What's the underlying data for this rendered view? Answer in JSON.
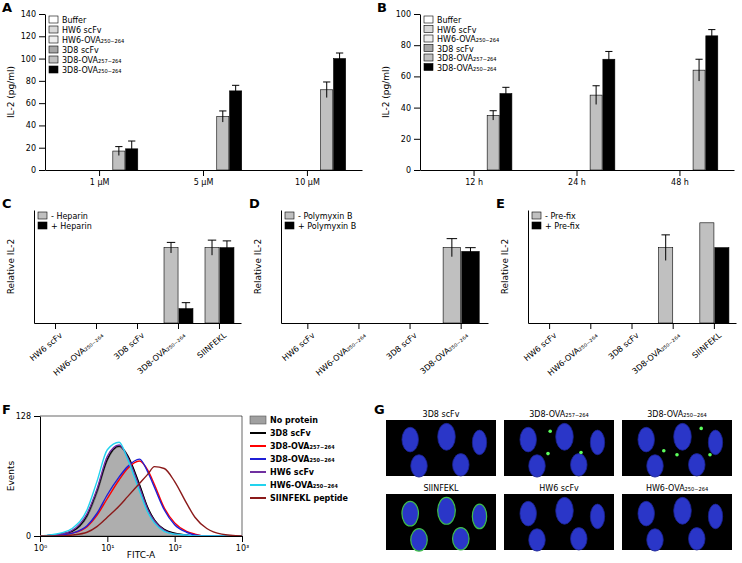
{
  "chart_data": [
    {
      "type": "bar",
      "title": "A",
      "ylabel": "IL-2 (pg/ml)",
      "categories": [
        "1 μM",
        "5 μM",
        "10 μM"
      ],
      "series": [
        {
          "name": "Buffer",
          "color": "#ffffff",
          "values": [
            0,
            0,
            0
          ],
          "errors": [
            null,
            null,
            null
          ]
        },
        {
          "name": "HW6 scFv",
          "color": "#d9d9d9",
          "values": [
            0,
            0,
            0
          ],
          "errors": [
            null,
            null,
            null
          ]
        },
        {
          "name": "HW6-OVA₂₅₀₋₂₆₄",
          "color": "#eeeeee",
          "values": [
            0,
            0,
            0
          ],
          "errors": [
            null,
            null,
            null
          ]
        },
        {
          "name": "3D8 scFv",
          "color": "#a6a6a6",
          "values": [
            0,
            0,
            0
          ],
          "errors": [
            null,
            null,
            null
          ]
        },
        {
          "name": "3D8-OVA₂₅₇₋₂₆₄",
          "color": "#c0c0c0",
          "values": [
            17,
            48,
            72
          ],
          "errors": [
            4,
            5,
            7
          ]
        },
        {
          "name": "3D8-OVA₂₅₀₋₂₆₄",
          "color": "#000000",
          "values": [
            19,
            71,
            100
          ],
          "errors": [
            7,
            5,
            5
          ]
        }
      ],
      "ylim": [
        0,
        140
      ],
      "yticks": [
        0,
        20,
        40,
        60,
        80,
        100,
        120,
        140
      ],
      "legend": "upper left"
    },
    {
      "type": "bar",
      "title": "B",
      "ylabel": "IL-2 (pg/ml)",
      "categories": [
        "12 h",
        "24 h",
        "48 h"
      ],
      "series": [
        {
          "name": "Buffer",
          "color": "#ffffff",
          "values": [
            0,
            0,
            0
          ],
          "errors": [
            null,
            null,
            null
          ]
        },
        {
          "name": "HW6 scFv",
          "color": "#d9d9d9",
          "values": [
            0,
            0,
            0
          ],
          "errors": [
            null,
            null,
            null
          ]
        },
        {
          "name": "HW6-OVA₂₅₀₋₂₆₄",
          "color": "#eeeeee",
          "values": [
            0,
            0,
            0
          ],
          "errors": [
            null,
            null,
            null
          ]
        },
        {
          "name": "3D8 scFv",
          "color": "#a6a6a6",
          "values": [
            0,
            0,
            0
          ],
          "errors": [
            null,
            null,
            null
          ]
        },
        {
          "name": "3D8-OVA₂₅₇₋₂₆₄",
          "color": "#c0c0c0",
          "values": [
            35,
            48,
            64
          ],
          "errors": [
            3,
            6,
            7
          ]
        },
        {
          "name": "3D8-OVA₂₅₀₋₂₆₄",
          "color": "#000000",
          "values": [
            49,
            71,
            86
          ],
          "errors": [
            4,
            5,
            4
          ]
        }
      ],
      "ylim": [
        0,
        100
      ],
      "yticks": [
        0,
        20,
        40,
        60,
        80,
        100
      ],
      "legend": "upper left"
    },
    {
      "type": "bar",
      "title": "C",
      "ylabel": "Relative IL-2",
      "categories": [
        "HW6 scFv",
        "HW6-OVA₂₅₀₋₂₆₄",
        "3D8 scFv",
        "3D8-OVA₂₅₀₋₂₆₄",
        "SIINFEKL"
      ],
      "series": [
        {
          "name": "- Heparin",
          "color": "#c0c0c0",
          "values": [
            0,
            0,
            0,
            1.0,
            1.0
          ],
          "errors": [
            null,
            null,
            null,
            0.07,
            0.1
          ]
        },
        {
          "name": "+ Heparin",
          "color": "#000000",
          "values": [
            0,
            0,
            0,
            0.19,
            1.0
          ],
          "errors": [
            null,
            null,
            null,
            0.08,
            0.09
          ]
        }
      ],
      "ylim": [
        0,
        1.5
      ],
      "tick_labels": "x",
      "legend": "upper left"
    },
    {
      "type": "bar",
      "title": "D",
      "ylabel": "Relative IL-2",
      "categories": [
        "HW6 scFv",
        "HW6-OVA₂₅₀₋₂₆₄",
        "3D8 scFv",
        "3D8-OVA₂₅₀₋₂₆₄"
      ],
      "series": [
        {
          "name": "- Polymyxin B",
          "color": "#c0c0c0",
          "values": [
            0,
            0,
            0,
            1.0
          ],
          "errors": [
            null,
            null,
            null,
            0.12
          ]
        },
        {
          "name": "+ Polymyxin B",
          "color": "#000000",
          "values": [
            0,
            0,
            0,
            0.95
          ],
          "errors": [
            null,
            null,
            null,
            0.05
          ]
        }
      ],
      "ylim": [
        0,
        1.5
      ],
      "tick_labels": "x",
      "legend": "upper left"
    },
    {
      "type": "bar",
      "title": "E",
      "ylabel": "Relative IL-2",
      "categories": [
        "HW6 scFv",
        "HW6-OVA₂₅₀₋₂₆₄",
        "3D8 scFv",
        "3D8-OVA₂₅₀₋₂₆₄",
        "SIINFEKL"
      ],
      "series": [
        {
          "name": "- Pre-fix",
          "color": "#c0c0c0",
          "values": [
            0,
            0,
            0,
            1.0,
            1.33
          ],
          "errors": [
            null,
            null,
            null,
            0.17,
            null
          ]
        },
        {
          "name": "+ Pre-fix",
          "color": "#000000",
          "values": [
            0,
            0,
            0,
            0,
            1.0
          ],
          "errors": [
            null,
            null,
            null,
            null,
            null
          ]
        }
      ],
      "ylim": [
        0,
        1.5
      ],
      "tick_labels": "x",
      "legend": "upper left"
    },
    {
      "type": "line",
      "title": "F",
      "xlabel": "FITC-A",
      "ylabel": "Events",
      "log": "x",
      "x": [
        1,
        2,
        3,
        5,
        7,
        10,
        15,
        20,
        30,
        40,
        50,
        70,
        100,
        150,
        200,
        300,
        500,
        1000
      ],
      "series": [
        {
          "name": "No protein",
          "type": "area",
          "color": "#a0a0a0",
          "values": [
            0,
            2,
            5,
            20,
            45,
            80,
            95,
            85,
            55,
            30,
            18,
            7,
            3,
            1,
            0,
            0,
            0,
            0
          ]
        },
        {
          "name": "3D8 scFv",
          "color": "#000000",
          "values": [
            0,
            2,
            5,
            22,
            48,
            82,
            96,
            86,
            55,
            30,
            17,
            7,
            3,
            1,
            0,
            0,
            0,
            0
          ]
        },
        {
          "name": "3D8-OVA₂₅₇₋₂₆₄",
          "color": "#ff0000",
          "values": [
            0,
            1,
            3,
            10,
            22,
            40,
            60,
            72,
            80,
            70,
            55,
            30,
            14,
            5,
            2,
            0,
            0,
            0
          ]
        },
        {
          "name": "3D8-OVA₂₅₀₋₂₆₄",
          "color": "#1f1fd6",
          "values": [
            0,
            1,
            3,
            11,
            24,
            44,
            63,
            74,
            82,
            68,
            52,
            28,
            12,
            4,
            1,
            0,
            0,
            0
          ]
        },
        {
          "name": "HW6 scFv",
          "color": "#7030a0",
          "values": [
            0,
            2,
            6,
            24,
            50,
            85,
            97,
            84,
            52,
            28,
            16,
            6,
            2,
            1,
            0,
            0,
            0,
            0
          ]
        },
        {
          "name": "HW6-OVA₂₅₀₋₂₆₄",
          "color": "#22d3ee",
          "values": [
            0,
            3,
            8,
            28,
            58,
            92,
            100,
            82,
            48,
            25,
            14,
            5,
            2,
            1,
            0,
            0,
            0,
            0
          ]
        },
        {
          "name": "SIINFEKL peptide",
          "color": "#8b1a1a",
          "values": [
            0,
            0,
            1,
            4,
            10,
            20,
            32,
            42,
            56,
            66,
            74,
            72,
            58,
            35,
            20,
            8,
            2,
            0
          ]
        }
      ],
      "xlim": [
        1,
        1000
      ],
      "xticks": [
        {
          "value": 1,
          "label": "10⁰"
        },
        {
          "value": 10,
          "label": "10¹"
        },
        {
          "value": 100,
          "label": "10²"
        },
        {
          "value": 1000,
          "label": "10³"
        }
      ],
      "ylim": [
        0,
        128
      ],
      "yticks": [
        0,
        128
      ],
      "legend": "right"
    }
  ],
  "panel_g": {
    "title": "G",
    "images": [
      {
        "label": "3D8 scFv"
      },
      {
        "label": "3D8-OVA₂₅₇₋₂₆₄"
      },
      {
        "label": "3D8-OVA₂₅₀₋₂₆₄"
      },
      {
        "label": "SIINFEKL"
      },
      {
        "label": "HW6 scFv"
      },
      {
        "label": "HW6-OVA₂₅₀₋₂₆₄"
      }
    ]
  }
}
